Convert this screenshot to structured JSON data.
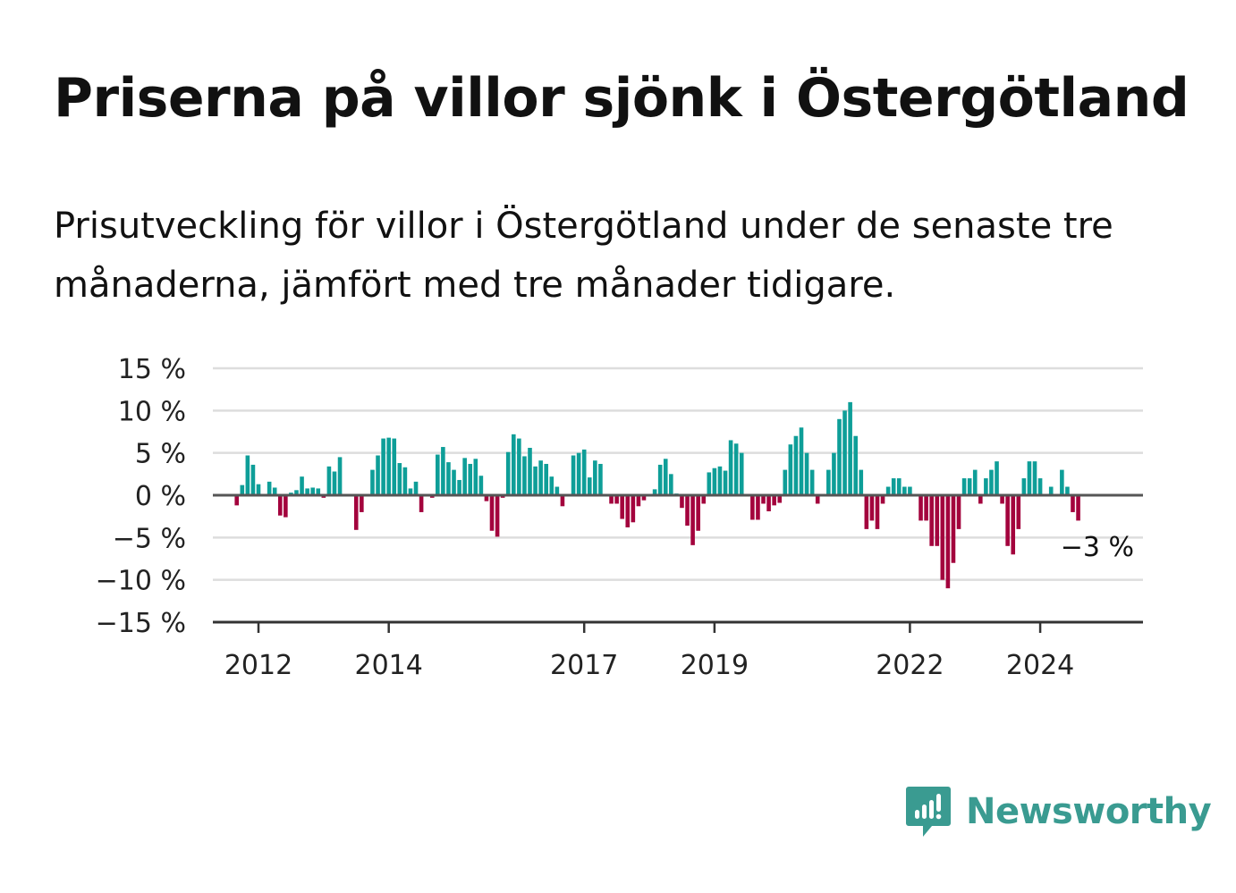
{
  "title": "Priserna på villor sjönk i Östergötland",
  "subtitle": "Prisutveckling för villor i Östergötland under de senaste tre månaderna, jämfört med tre månader tidigare.",
  "brand": {
    "name": "Newsworthy",
    "icon": "newsworthy-logo-icon",
    "color": "#3a9b91"
  },
  "colors": {
    "positive": "#0e9e98",
    "negative": "#a3033d",
    "grid": "#dddddd",
    "axis": "#333333",
    "text": "#222222"
  },
  "chart_data": {
    "type": "bar",
    "title": "Priserna på villor sjönk i Östergötland",
    "xlabel": "",
    "ylabel": "",
    "ylim": [
      -15,
      15
    ],
    "y_ticks": [
      15,
      10,
      5,
      0,
      -5,
      -10,
      -15
    ],
    "y_tick_labels": [
      "15 %",
      "10 %",
      "5 %",
      "0 %",
      "−5 %",
      "−10 %",
      "−15 %"
    ],
    "x_tick_labels": [
      "2012",
      "2014",
      "2017",
      "2019",
      "2022",
      "2024"
    ],
    "x_tick_years": [
      2012,
      2014,
      2017,
      2019,
      2022,
      2024
    ],
    "start": "2011-09",
    "end": "2025-04",
    "grid": true,
    "annotation": {
      "text": "−3 %",
      "value": -3
    },
    "values": [
      -1.2,
      1.2,
      4.7,
      3.6,
      1.3,
      0,
      1.6,
      0.9,
      -2.4,
      -2.6,
      0.3,
      0.6,
      2.2,
      0.8,
      0.9,
      0.8,
      -0.3,
      3.4,
      2.8,
      4.5,
      0,
      0,
      -4.1,
      -2,
      0,
      3,
      4.7,
      6.7,
      6.8,
      6.7,
      3.8,
      3.3,
      0.8,
      1.6,
      -2,
      0,
      -0.3,
      4.8,
      5.7,
      3.9,
      3,
      1.8,
      4.4,
      3.7,
      4.3,
      2.3,
      -0.7,
      -4.2,
      -4.9,
      -0.3,
      5.1,
      7.2,
      6.7,
      4.6,
      5.6,
      3.4,
      4.1,
      3.7,
      2.2,
      1,
      -1.3,
      0,
      4.7,
      5,
      5.4,
      2.1,
      4.1,
      3.7,
      0,
      -1,
      -1,
      -2.8,
      -3.8,
      -3.2,
      -1.3,
      -0.6,
      0,
      0.7,
      3.6,
      4.3,
      2.5,
      0.2,
      -1.5,
      -3.6,
      -5.9,
      -4.2,
      -1,
      2.7,
      3.2,
      3.4,
      2.9,
      6.5,
      6.1,
      5,
      0,
      -2.9,
      -2.9,
      -1,
      -1.9,
      -1.2,
      -0.9,
      3,
      6,
      7,
      8,
      5,
      3,
      -1,
      0,
      3,
      5,
      9,
      10,
      11,
      7,
      3,
      -4,
      -3,
      -4,
      -1,
      1,
      2,
      2,
      1,
      1,
      0,
      -3,
      -3,
      -6,
      -6,
      -10,
      -11,
      -8,
      -4,
      2,
      2,
      3,
      -1,
      2,
      3,
      4,
      -1,
      -6,
      -7,
      -4,
      2,
      4,
      4,
      2,
      0,
      1,
      0,
      3,
      1,
      -2,
      -3
    ]
  }
}
